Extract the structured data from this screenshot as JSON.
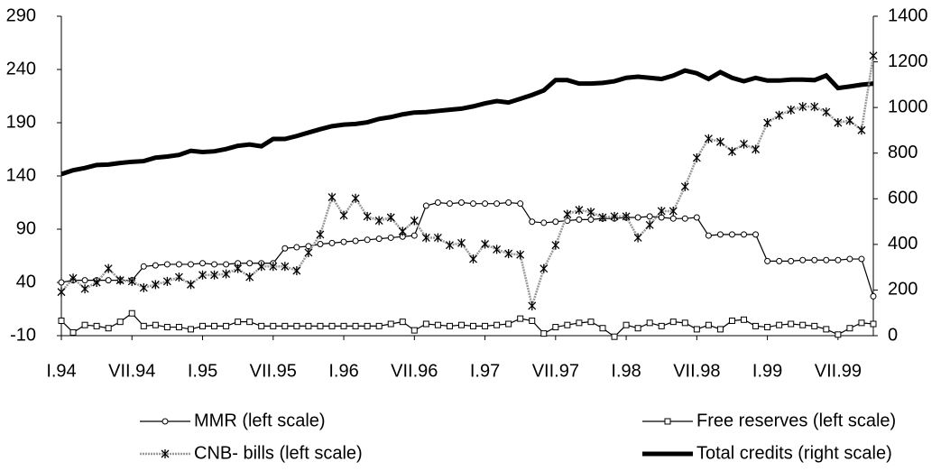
{
  "chart_data": {
    "type": "line",
    "categories": [
      "I.94",
      null,
      null,
      null,
      null,
      null,
      "VII.94",
      null,
      null,
      null,
      null,
      null,
      "I.95",
      null,
      null,
      null,
      null,
      null,
      "VII.95",
      null,
      null,
      null,
      null,
      null,
      "I.96",
      null,
      null,
      null,
      null,
      null,
      "VII.96",
      null,
      null,
      null,
      null,
      null,
      "I.97",
      null,
      null,
      null,
      null,
      null,
      "VII.97",
      null,
      null,
      null,
      null,
      null,
      "I.98",
      null,
      null,
      null,
      null,
      null,
      "VII.98",
      null,
      null,
      null,
      null,
      null,
      "I.99",
      null,
      null,
      null,
      null,
      null,
      "VII.99",
      null,
      null,
      null
    ],
    "ylim": [
      -10,
      290
    ],
    "yticks": [
      -10,
      40,
      90,
      140,
      190,
      240,
      290
    ],
    "y2lim": [
      0,
      1400
    ],
    "y2ticks": [
      0,
      200,
      400,
      600,
      800,
      1000,
      1200,
      1400
    ],
    "grid": false,
    "legend": "bottom",
    "series": [
      {
        "name": "MMR (left scale)",
        "color": "#000000",
        "marker": "circle",
        "values": [
          40,
          42,
          42,
          42,
          42,
          42,
          42,
          55,
          56,
          57,
          57,
          57,
          58,
          57,
          57,
          58,
          58,
          58,
          58,
          72,
          73,
          74,
          76,
          77,
          78,
          79,
          80,
          81,
          82,
          83,
          84,
          112,
          115,
          114,
          115,
          114,
          114,
          114,
          115,
          114,
          97,
          96,
          97,
          98,
          99,
          99,
          100,
          100,
          101,
          101,
          102,
          101,
          100,
          100,
          101,
          84,
          85,
          85,
          85,
          85,
          60,
          60,
          60,
          61,
          61,
          61,
          61,
          62,
          62,
          27
        ]
      },
      {
        "name": "Free reserves (left scale)",
        "color": "#000000",
        "marker": "square",
        "values": [
          4,
          -7,
          0,
          -1,
          -3,
          3,
          11,
          -1,
          0,
          -2,
          -2,
          -4,
          -1,
          -1,
          -1,
          3,
          3,
          -1,
          -1,
          -1,
          -1,
          -1,
          -1,
          -1,
          -1,
          -1,
          -1,
          -1,
          1,
          3,
          -5,
          1,
          0,
          -1,
          0,
          -1,
          -1,
          0,
          1,
          6,
          4,
          -8,
          -2,
          0,
          2,
          3,
          -3,
          -11,
          0,
          -3,
          2,
          -1,
          3,
          2,
          -4,
          0,
          -4,
          4,
          5,
          -1,
          -2,
          0,
          1,
          0,
          -1,
          -4,
          -9,
          -3,
          2,
          1
        ]
      },
      {
        "name": "CNB- bills (left scale)",
        "color": "#999999",
        "marker": "star",
        "values": [
          31,
          44,
          34,
          40,
          53,
          42,
          41,
          35,
          38,
          41,
          45,
          38,
          47,
          47,
          48,
          53,
          45,
          55,
          55,
          55,
          51,
          68,
          85,
          120,
          103,
          119,
          102,
          98,
          101,
          88,
          98,
          82,
          82,
          75,
          77,
          62,
          76,
          71,
          67,
          66,
          18,
          53,
          75,
          104,
          108,
          106,
          101,
          102,
          102,
          82,
          94,
          107,
          107,
          130,
          157,
          175,
          172,
          163,
          170,
          165,
          190,
          197,
          202,
          205,
          205,
          200,
          190,
          192,
          183,
          253
        ]
      },
      {
        "name": "Total credits (right scale)",
        "color": "#000000",
        "marker": "none",
        "axis": "y2",
        "values": [
          708,
          725,
          735,
          748,
          750,
          757,
          762,
          765,
          780,
          785,
          792,
          810,
          805,
          808,
          818,
          832,
          838,
          830,
          862,
          862,
          875,
          890,
          905,
          918,
          925,
          928,
          935,
          950,
          958,
          970,
          978,
          980,
          985,
          990,
          995,
          1005,
          1018,
          1028,
          1022,
          1038,
          1055,
          1075,
          1120,
          1120,
          1105,
          1105,
          1108,
          1115,
          1130,
          1135,
          1130,
          1125,
          1140,
          1162,
          1150,
          1125,
          1155,
          1130,
          1115,
          1130,
          1118,
          1118,
          1122,
          1122,
          1120,
          1140,
          1085,
          1092,
          1100,
          1105
        ]
      }
    ]
  }
}
